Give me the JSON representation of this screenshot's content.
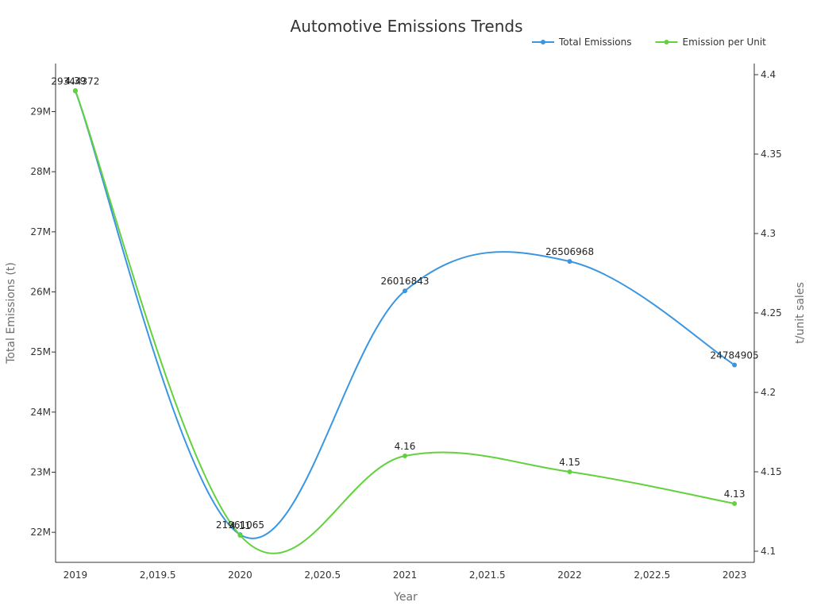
{
  "chart_data": {
    "type": "line",
    "title": "Automotive Emissions Trends",
    "xlabel": "Year",
    "ylabel_left": "Total Emissions (t)",
    "ylabel_right": "t/unit sales",
    "x": [
      2019,
      2020,
      2021,
      2022,
      2023
    ],
    "x_ticks": [
      2019,
      2019.5,
      2020,
      2020.5,
      2021,
      2021.5,
      2022,
      2022.5,
      2023
    ],
    "x_tick_labels": [
      "2019",
      "2,019.5",
      "2020",
      "2,020.5",
      "2021",
      "2,021.5",
      "2022",
      "2,022.5",
      "2023"
    ],
    "xlim": [
      2018.88,
      2023.12
    ],
    "y_left": {
      "lim": [
        21500000,
        29800000
      ],
      "ticks": [
        22000000,
        23000000,
        24000000,
        25000000,
        26000000,
        27000000,
        28000000,
        29000000
      ],
      "tick_labels": [
        "22M",
        "23M",
        "24M",
        "25M",
        "26M",
        "27M",
        "28M",
        "29M"
      ]
    },
    "y_right": {
      "lim": [
        4.093,
        4.407
      ],
      "ticks": [
        4.1,
        4.15,
        4.2,
        4.25,
        4.3,
        4.35,
        4.4
      ],
      "tick_labels": [
        "4.1",
        "4.15",
        "4.2",
        "4.25",
        "4.3",
        "4.35",
        "4.4"
      ]
    },
    "legend_position": "top-right",
    "series": [
      {
        "name": "Total Emissions",
        "axis": "left",
        "color": "#3a96e0",
        "values": [
          29344372,
          21961065,
          26016843,
          26506968,
          24784905
        ],
        "labels": [
          "29344372",
          "21961065",
          "26016843",
          "26506968",
          "24784905"
        ]
      },
      {
        "name": "Emission per Unit",
        "axis": "right",
        "color": "#63d13e",
        "values": [
          4.39,
          4.11,
          4.16,
          4.15,
          4.13
        ],
        "labels": [
          "4.39",
          "4.11",
          "4.16",
          "4.15",
          "4.13"
        ]
      }
    ]
  }
}
